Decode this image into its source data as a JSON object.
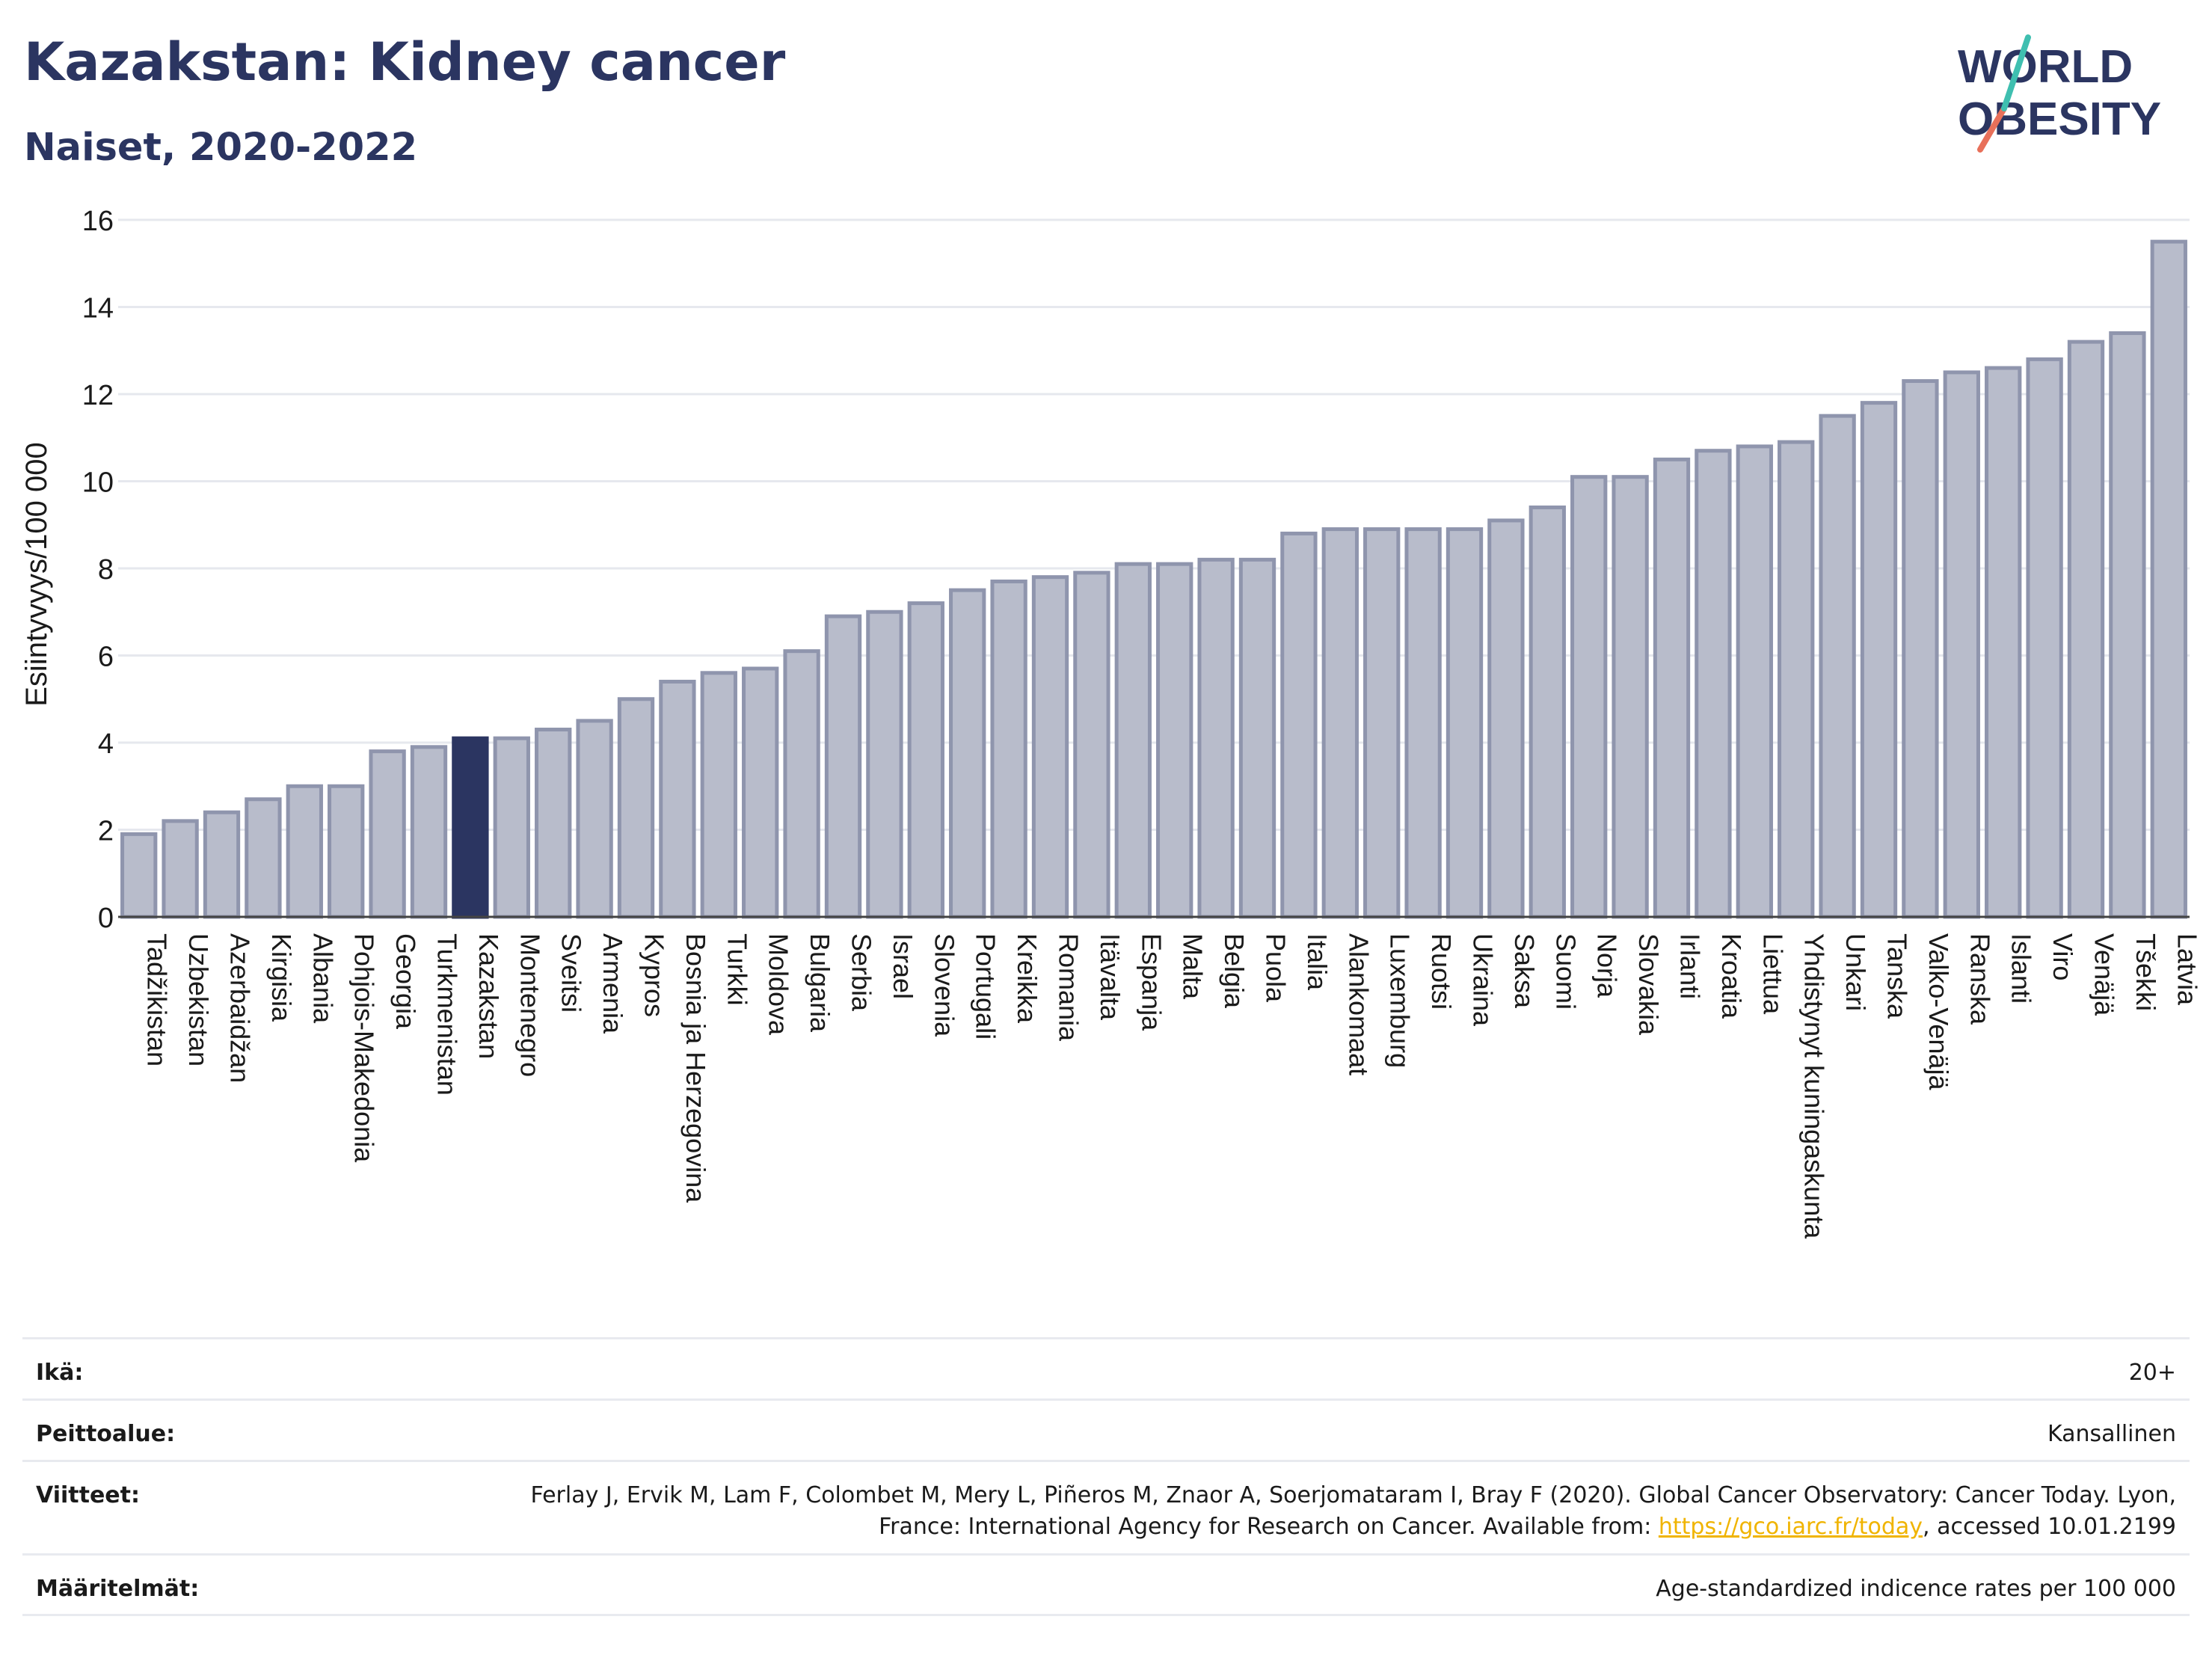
{
  "title": "Kazakstan: Kidney cancer",
  "subtitle": "Naiset, 2020-2022",
  "logo": {
    "line1": "WORLD",
    "line2": "OBESITY"
  },
  "colors": {
    "bar": "#b8bccb",
    "bar_stroke": "#8f95ad",
    "highlight": "#2b3561",
    "title": "#2b3561",
    "link": "#f0b400"
  },
  "chart_data": {
    "type": "bar",
    "ylabel": "Esiintyvyys/100 000",
    "xlabel": "",
    "ylim": [
      0,
      16
    ],
    "yticks": [
      0,
      2,
      4,
      6,
      8,
      10,
      12,
      14,
      16
    ],
    "grid": true,
    "highlight": "Kazakstan",
    "categories": [
      "Tadžikistan",
      "Uzbekistan",
      "Azerbaidžan",
      "Kirgisia",
      "Albania",
      "Pohjois-Makedonia",
      "Georgia",
      "Turkmenistan",
      "Kazakstan",
      "Montenegro",
      "Sveitsi",
      "Armenia",
      "Kypros",
      "Bosnia ja Herzegovina",
      "Turkki",
      "Moldova",
      "Bulgaria",
      "Serbia",
      "Israel",
      "Slovenia",
      "Portugali",
      "Kreikka",
      "Romania",
      "Itävalta",
      "Espanja",
      "Malta",
      "Belgia",
      "Puola",
      "Italia",
      "Alankomaat",
      "Luxemburg",
      "Ruotsi",
      "Ukraina",
      "Saksa",
      "Suomi",
      "Norja",
      "Slovakia",
      "Irlanti",
      "Kroatia",
      "Liettua",
      "Yhdistynyt kuningaskunta",
      "Unkari",
      "Tanska",
      "Valko-Venäjä",
      "Ranska",
      "Islanti",
      "Viro",
      "Venäjä",
      "Tšekki",
      "Latvia"
    ],
    "values": [
      1.9,
      2.2,
      2.4,
      2.7,
      3.0,
      3.0,
      3.8,
      3.9,
      4.1,
      4.1,
      4.3,
      4.5,
      5.0,
      5.4,
      5.6,
      5.7,
      6.1,
      6.9,
      7.0,
      7.2,
      7.5,
      7.7,
      7.8,
      7.9,
      8.1,
      8.1,
      8.2,
      8.2,
      8.8,
      8.9,
      8.9,
      8.9,
      8.9,
      9.1,
      9.4,
      10.1,
      10.1,
      10.5,
      10.7,
      10.8,
      10.9,
      11.5,
      11.8,
      12.3,
      12.5,
      12.6,
      12.8,
      13.2,
      13.4,
      15.5
    ]
  },
  "footer": {
    "age_label": "Ikä:",
    "age_value": "20+",
    "coverage_label": "Peittoalue:",
    "coverage_value": "Kansallinen",
    "refs_label": "Viitteet:",
    "refs_text1": "Ferlay J, Ervik M, Lam F, Colombet M, Mery L, Piñeros M, Znaor A, Soerjomataram I, Bray F (2020). Global Cancer Observatory: Cancer Today. Lyon, France: International Agency for Research on Cancer. Available from: ",
    "refs_link": "https://gco.iarc.fr/today",
    "refs_text2": ", accessed 10.01.2199",
    "defs_label": "Määritelmät:",
    "defs_value": "Age-standardized indicence rates per 100 000"
  }
}
